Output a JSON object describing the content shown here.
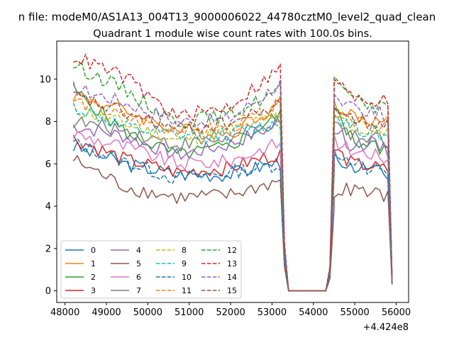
{
  "suptitle": "n file: modeM0/AS1A13_004T13_9000006022_44780cztM0_level2_quad_clean",
  "chart_data": {
    "type": "line",
    "title": "Quadrant 1 module wise count rates with 100.0s bins.",
    "xlabel": "",
    "ylabel": "",
    "x_offset_label": "+4.424e8",
    "xlim": [
      47800,
      56300
    ],
    "ylim": [
      -0.55,
      11.8
    ],
    "xticks": [
      48000,
      49000,
      50000,
      51000,
      52000,
      53000,
      54000,
      55000,
      56000
    ],
    "xtick_labels": [
      "48000",
      "49000",
      "50000",
      "51000",
      "52000",
      "53000",
      "54000",
      "55000",
      "56000"
    ],
    "yticks": [
      0,
      2,
      4,
      6,
      8,
      10
    ],
    "ytick_labels": [
      "0",
      "2",
      "4",
      "6",
      "8",
      "10"
    ],
    "grid": false,
    "legend_placement": "lower-left",
    "segments": [
      {
        "start": 48200,
        "end": 53200,
        "step": 100
      },
      {
        "start": 54500,
        "end": 55900,
        "step": 100
      }
    ],
    "dropouts": [
      {
        "x": 53300,
        "y": 2.0
      },
      {
        "x": 53400,
        "y": 0
      },
      {
        "x": 53500,
        "y": 0
      },
      {
        "x": 53600,
        "y": 0
      },
      {
        "x": 53700,
        "y": 0
      },
      {
        "x": 53800,
        "y": 0
      },
      {
        "x": 53900,
        "y": 0
      },
      {
        "x": 54000,
        "y": 0
      },
      {
        "x": 54100,
        "y": 0
      },
      {
        "x": 54200,
        "y": 0
      },
      {
        "x": 54300,
        "y": 0
      },
      {
        "x": 54400,
        "y": 1.0
      }
    ],
    "series": [
      {
        "name": "0",
        "color": "#1f77b4",
        "dash": false,
        "seg1": [
          6.8,
          6.0,
          5.5,
          5.5,
          6.1
        ],
        "seg2": [
          6.4,
          5.8,
          5.8,
          5.4,
          0.3
        ]
      },
      {
        "name": "1",
        "color": "#ff7f0e",
        "dash": false,
        "seg1": [
          9.3,
          8.5,
          7.6,
          7.4,
          8.9
        ],
        "seg2": [
          8.8,
          8.3,
          8.0,
          7.9,
          0.5
        ]
      },
      {
        "name": "2",
        "color": "#2ca02c",
        "dash": false,
        "seg1": [
          9.5,
          7.5,
          6.4,
          6.8,
          8.3
        ],
        "seg2": [
          8.6,
          7.2,
          6.9,
          6.6,
          0.4
        ]
      },
      {
        "name": "3",
        "color": "#d62728",
        "dash": false,
        "seg1": [
          7.2,
          6.2,
          5.6,
          5.8,
          6.5
        ],
        "seg2": [
          6.7,
          6.0,
          5.9,
          5.7,
          0.4
        ]
      },
      {
        "name": "4",
        "color": "#9467bd",
        "dash": false,
        "seg1": [
          7.8,
          7.3,
          6.4,
          6.9,
          7.9
        ],
        "seg2": [
          7.6,
          6.9,
          7.0,
          6.6,
          0.5
        ]
      },
      {
        "name": "5",
        "color": "#8c564b",
        "dash": false,
        "seg1": [
          6.2,
          4.9,
          4.4,
          4.5,
          5.2
        ],
        "seg2": [
          4.7,
          4.8,
          4.6,
          4.5,
          0.3
        ]
      },
      {
        "name": "6",
        "color": "#e377c2",
        "dash": false,
        "seg1": [
          7.4,
          6.8,
          6.0,
          6.1,
          7.0
        ],
        "seg2": [
          7.1,
          6.6,
          6.5,
          6.2,
          0.4
        ]
      },
      {
        "name": "7",
        "color": "#7f7f7f",
        "dash": false,
        "seg1": [
          8.0,
          7.6,
          6.9,
          7.2,
          8.0
        ],
        "seg2": [
          7.8,
          7.3,
          7.2,
          7.0,
          0.5
        ]
      },
      {
        "name": "8",
        "color": "#bcbd22",
        "dash": true,
        "seg1": [
          8.6,
          7.9,
          7.1,
          7.5,
          8.3
        ],
        "seg2": [
          8.2,
          7.7,
          7.6,
          7.4,
          0.5
        ]
      },
      {
        "name": "9",
        "color": "#17becf",
        "dash": true,
        "seg1": [
          8.7,
          7.7,
          7.3,
          7.4,
          7.9
        ],
        "seg2": [
          8.3,
          7.8,
          7.5,
          7.3,
          0.6
        ]
      },
      {
        "name": "10",
        "color": "#1f77b4",
        "dash": true,
        "seg1": [
          7.0,
          6.1,
          5.3,
          5.6,
          6.0
        ],
        "seg2": [
          6.6,
          6.0,
          5.7,
          5.6,
          0.4
        ]
      },
      {
        "name": "11",
        "color": "#ff7f0e",
        "dash": true,
        "seg1": [
          9.0,
          8.2,
          7.6,
          7.7,
          8.7
        ],
        "seg2": [
          8.6,
          8.1,
          7.9,
          7.7,
          0.6
        ]
      },
      {
        "name": "12",
        "color": "#2ca02c",
        "dash": true,
        "seg1": [
          10.7,
          9.5,
          8.0,
          8.3,
          9.5
        ],
        "seg2": [
          9.8,
          9.2,
          8.8,
          8.6,
          0.6
        ]
      },
      {
        "name": "13",
        "color": "#d62728",
        "dash": true,
        "seg1": [
          11.1,
          10.1,
          8.2,
          8.7,
          10.5
        ],
        "seg2": [
          9.8,
          9.3,
          9.1,
          8.9,
          0.7
        ]
      },
      {
        "name": "14",
        "color": "#9467bd",
        "dash": true,
        "seg1": [
          9.6,
          8.9,
          8.0,
          8.1,
          9.8
        ],
        "seg2": [
          9.2,
          8.8,
          8.5,
          8.3,
          0.6
        ]
      },
      {
        "name": "15",
        "color": "#8c564b",
        "dash": true,
        "seg1": [
          9.2,
          8.4,
          7.6,
          7.9,
          8.8
        ],
        "seg2": [
          8.7,
          8.2,
          8.0,
          7.9,
          0.5
        ]
      }
    ]
  }
}
